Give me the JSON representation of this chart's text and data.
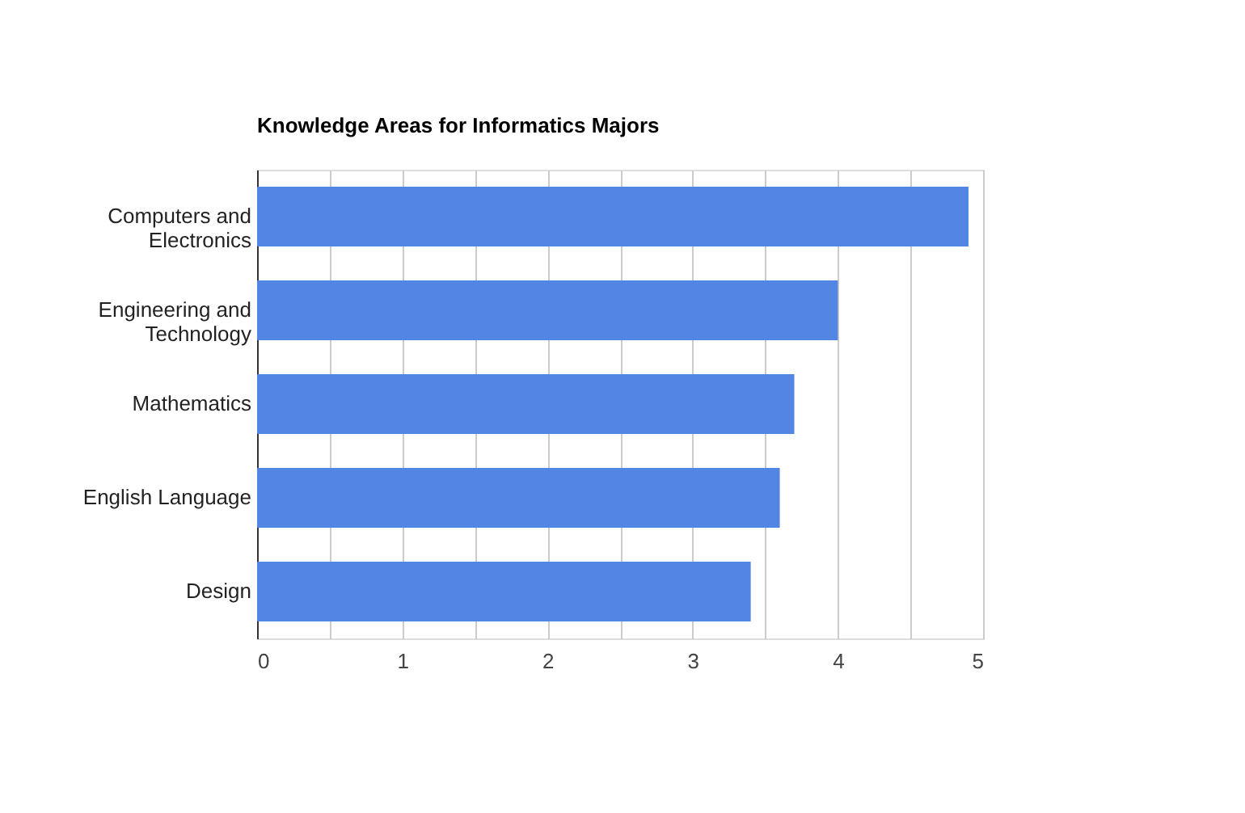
{
  "chart_data": {
    "type": "bar",
    "orientation": "horizontal",
    "title": "Knowledge Areas for Informatics Majors",
    "categories": [
      "Computers and Electronics",
      "Engineering and Technology",
      "Mathematics",
      "English Language",
      "Design"
    ],
    "values": [
      4.9,
      4.0,
      3.7,
      3.6,
      3.4
    ],
    "color": "#5386e4",
    "xlim": [
      0,
      5
    ],
    "xticks": [
      0,
      {
        "value": 0.5,
        "label": null
      },
      1,
      {
        "value": 1.5,
        "label": null
      },
      2,
      {
        "value": 2.5,
        "label": null
      },
      3,
      {
        "value": 3.5,
        "label": null
      },
      4,
      {
        "value": 4.5,
        "label": null
      },
      5
    ],
    "grid": "x"
  }
}
